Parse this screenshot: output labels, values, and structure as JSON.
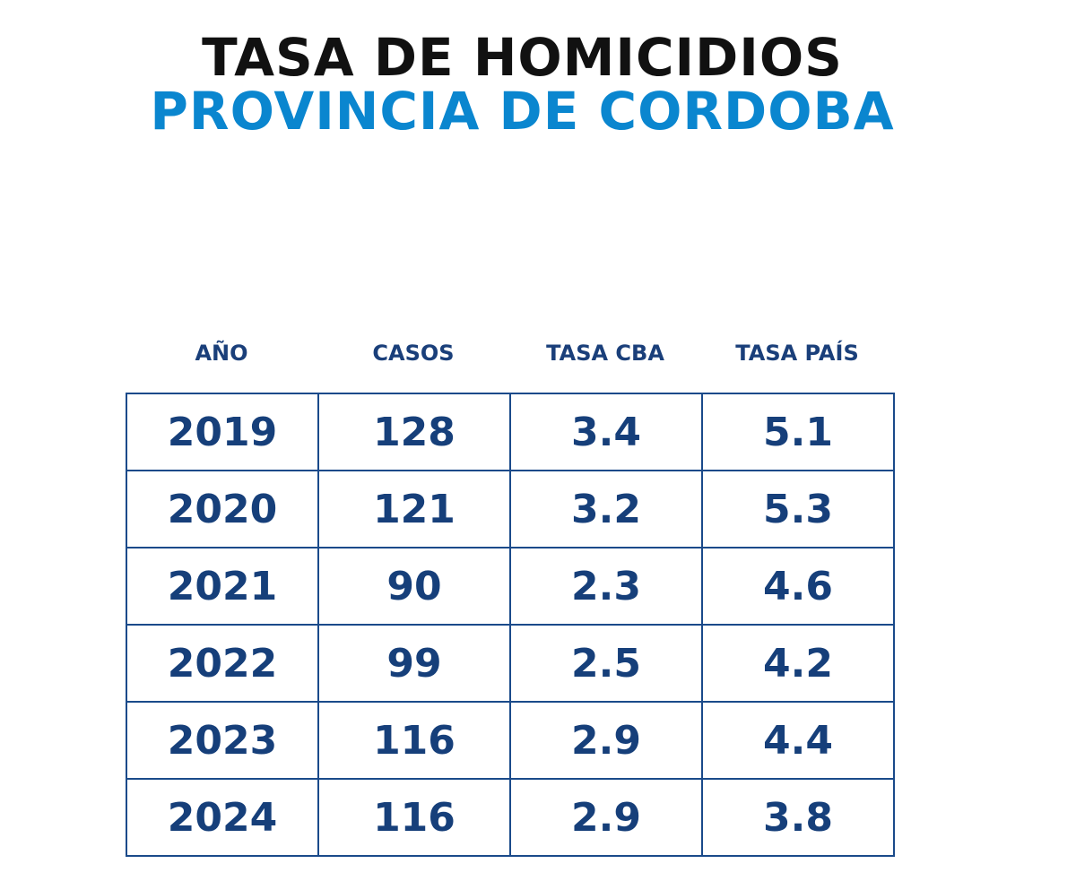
{
  "header": {
    "title": "TASA DE HOMICIDIOS",
    "subtitle": "PROVINCIA DE CORDOBA"
  },
  "table": {
    "columns": [
      "AÑO",
      "CASOS",
      "TASA CBA",
      "TASA PAÍS"
    ],
    "rows": [
      [
        "2019",
        "128",
        "3.4",
        "5.1"
      ],
      [
        "2020",
        "121",
        "3.2",
        "5.3"
      ],
      [
        "2021",
        "90",
        "2.3",
        "4.6"
      ],
      [
        "2022",
        "99",
        "2.5",
        "4.2"
      ],
      [
        "2023",
        "116",
        "2.9",
        "4.4"
      ],
      [
        "2024",
        "116",
        "2.9",
        "3.8"
      ]
    ]
  }
}
